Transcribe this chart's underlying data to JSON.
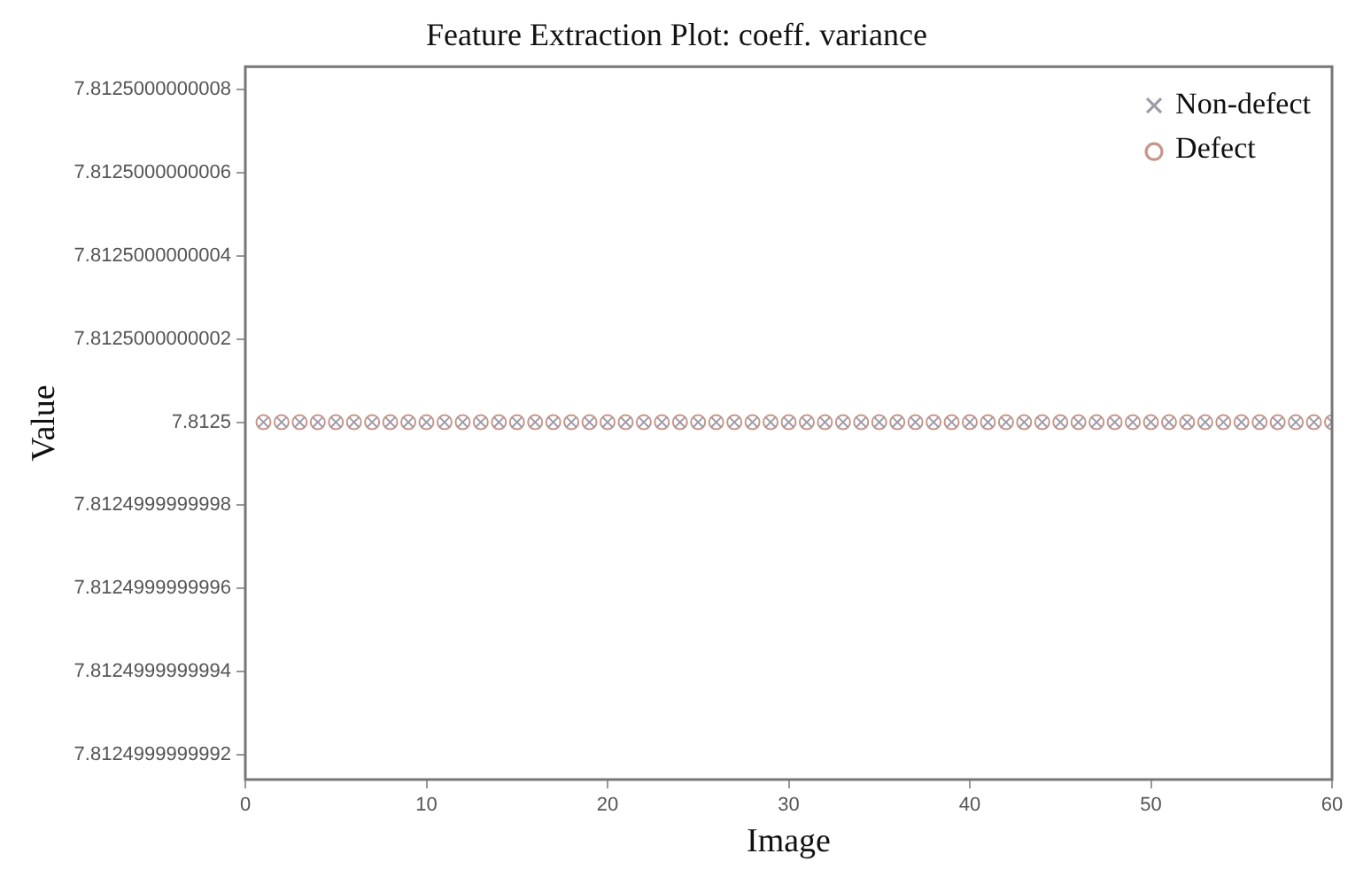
{
  "chart_data": {
    "type": "scatter",
    "title": "Feature Extraction Plot: coeff. variance",
    "xlabel": "Image",
    "ylabel": "Value",
    "x": [
      1,
      2,
      3,
      4,
      5,
      6,
      7,
      8,
      9,
      10,
      11,
      12,
      13,
      14,
      15,
      16,
      17,
      18,
      19,
      20,
      21,
      22,
      23,
      24,
      25,
      26,
      27,
      28,
      29,
      30,
      31,
      32,
      33,
      34,
      35,
      36,
      37,
      38,
      39,
      40,
      41,
      42,
      43,
      44,
      45,
      46,
      47,
      48,
      49,
      50,
      51,
      52,
      53,
      54,
      55,
      56,
      57,
      58,
      59,
      60
    ],
    "series": [
      {
        "name": "Non-defect",
        "color": "#a09aa8",
        "marker": "cross",
        "values": [
          7.8125,
          7.8125,
          7.8125,
          7.8125,
          7.8125,
          7.8125,
          7.8125,
          7.8125,
          7.8125,
          7.8125,
          7.8125,
          7.8125,
          7.8125,
          7.8125,
          7.8125,
          7.8125,
          7.8125,
          7.8125,
          7.8125,
          7.8125,
          7.8125,
          7.8125,
          7.8125,
          7.8125,
          7.8125,
          7.8125,
          7.8125,
          7.8125,
          7.8125,
          7.8125,
          7.8125,
          7.8125,
          7.8125,
          7.8125,
          7.8125,
          7.8125,
          7.8125,
          7.8125,
          7.8125,
          7.8125,
          7.8125,
          7.8125,
          7.8125,
          7.8125,
          7.8125,
          7.8125,
          7.8125,
          7.8125,
          7.8125,
          7.8125,
          7.8125,
          7.8125,
          7.8125,
          7.8125,
          7.8125,
          7.8125,
          7.8125,
          7.8125,
          7.8125,
          7.8125
        ]
      },
      {
        "name": "Defect",
        "color": "#c4968a",
        "marker": "circle",
        "values": [
          7.8125,
          7.8125,
          7.8125,
          7.8125,
          7.8125,
          7.8125,
          7.8125,
          7.8125,
          7.8125,
          7.8125,
          7.8125,
          7.8125,
          7.8125,
          7.8125,
          7.8125,
          7.8125,
          7.8125,
          7.8125,
          7.8125,
          7.8125,
          7.8125,
          7.8125,
          7.8125,
          7.8125,
          7.8125,
          7.8125,
          7.8125,
          7.8125,
          7.8125,
          7.8125,
          7.8125,
          7.8125,
          7.8125,
          7.8125,
          7.8125,
          7.8125,
          7.8125,
          7.8125,
          7.8125,
          7.8125,
          7.8125,
          7.8125,
          7.8125,
          7.8125,
          7.8125,
          7.8125,
          7.8125,
          7.8125,
          7.8125,
          7.8125,
          7.8125,
          7.8125,
          7.8125,
          7.8125,
          7.8125,
          7.8125,
          7.8125,
          7.8125,
          7.8125,
          7.8125
        ]
      }
    ],
    "xlim": [
      0,
      60
    ],
    "xticks": [
      0,
      10,
      20,
      30,
      40,
      50,
      60
    ],
    "ylim": [
      7.81249999999914,
      7.812500000000855
    ],
    "yticks": [
      {
        "value": 7.8124999999992,
        "label": "7.8124999999992"
      },
      {
        "value": 7.8124999999994,
        "label": "7.8124999999994"
      },
      {
        "value": 7.8124999999996,
        "label": "7.8124999999996"
      },
      {
        "value": 7.8124999999998,
        "label": "7.8124999999998"
      },
      {
        "value": 7.8125,
        "label": "7.8125"
      },
      {
        "value": 7.8125000000002,
        "label": "7.8125000000002"
      },
      {
        "value": 7.8125000000004,
        "label": "7.8125000000004"
      },
      {
        "value": 7.8125000000006,
        "label": "7.8125000000006"
      },
      {
        "value": 7.8125000000008,
        "label": "7.8125000000008"
      }
    ],
    "grid": false,
    "legend": "top right"
  }
}
